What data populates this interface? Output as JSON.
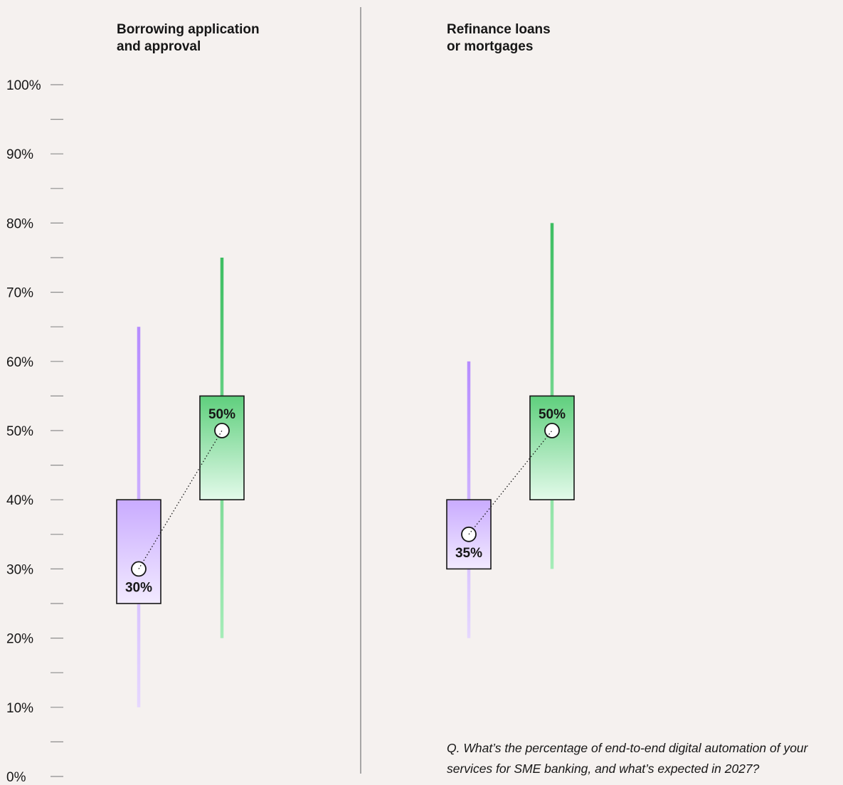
{
  "chart_data": {
    "type": "box",
    "y_axis": {
      "ticks": [
        "0%",
        "10%",
        "20%",
        "30%",
        "40%",
        "50%",
        "60%",
        "70%",
        "80%",
        "90%",
        "100%"
      ],
      "ylim": [
        0,
        100
      ],
      "minor_step": 5
    },
    "colors": {
      "current": "#a56eff",
      "current_light": "#e8daff",
      "expected": "#42be65",
      "expected_light": "#defbe6",
      "divider": "#8d8d8d"
    },
    "panels": [
      {
        "title_line1": "Borrowing application",
        "title_line2": "and approval",
        "boxes": [
          {
            "series": "current",
            "whisker_low": 10,
            "q1": 25,
            "q3": 40,
            "whisker_high": 65,
            "median": 30,
            "median_label": "30%"
          },
          {
            "series": "expected",
            "whisker_low": 20,
            "q1": 40,
            "q3": 55,
            "whisker_high": 75,
            "median": 50,
            "median_label": "50%"
          }
        ]
      },
      {
        "title_line1": "Refinance loans",
        "title_line2": "or mortgages",
        "boxes": [
          {
            "series": "current",
            "whisker_low": 20,
            "q1": 30,
            "q3": 40,
            "whisker_high": 60,
            "median": 35,
            "median_label": "35%"
          },
          {
            "series": "expected",
            "whisker_low": 30,
            "q1": 40,
            "q3": 55,
            "whisker_high": 80,
            "median": 50,
            "median_label": "50%"
          }
        ]
      }
    ]
  },
  "note": {
    "line1": "Q. What’s the percentage of end-to-end digital automation of your",
    "line2": "services for SME banking, and what’s expected in 2027?"
  }
}
